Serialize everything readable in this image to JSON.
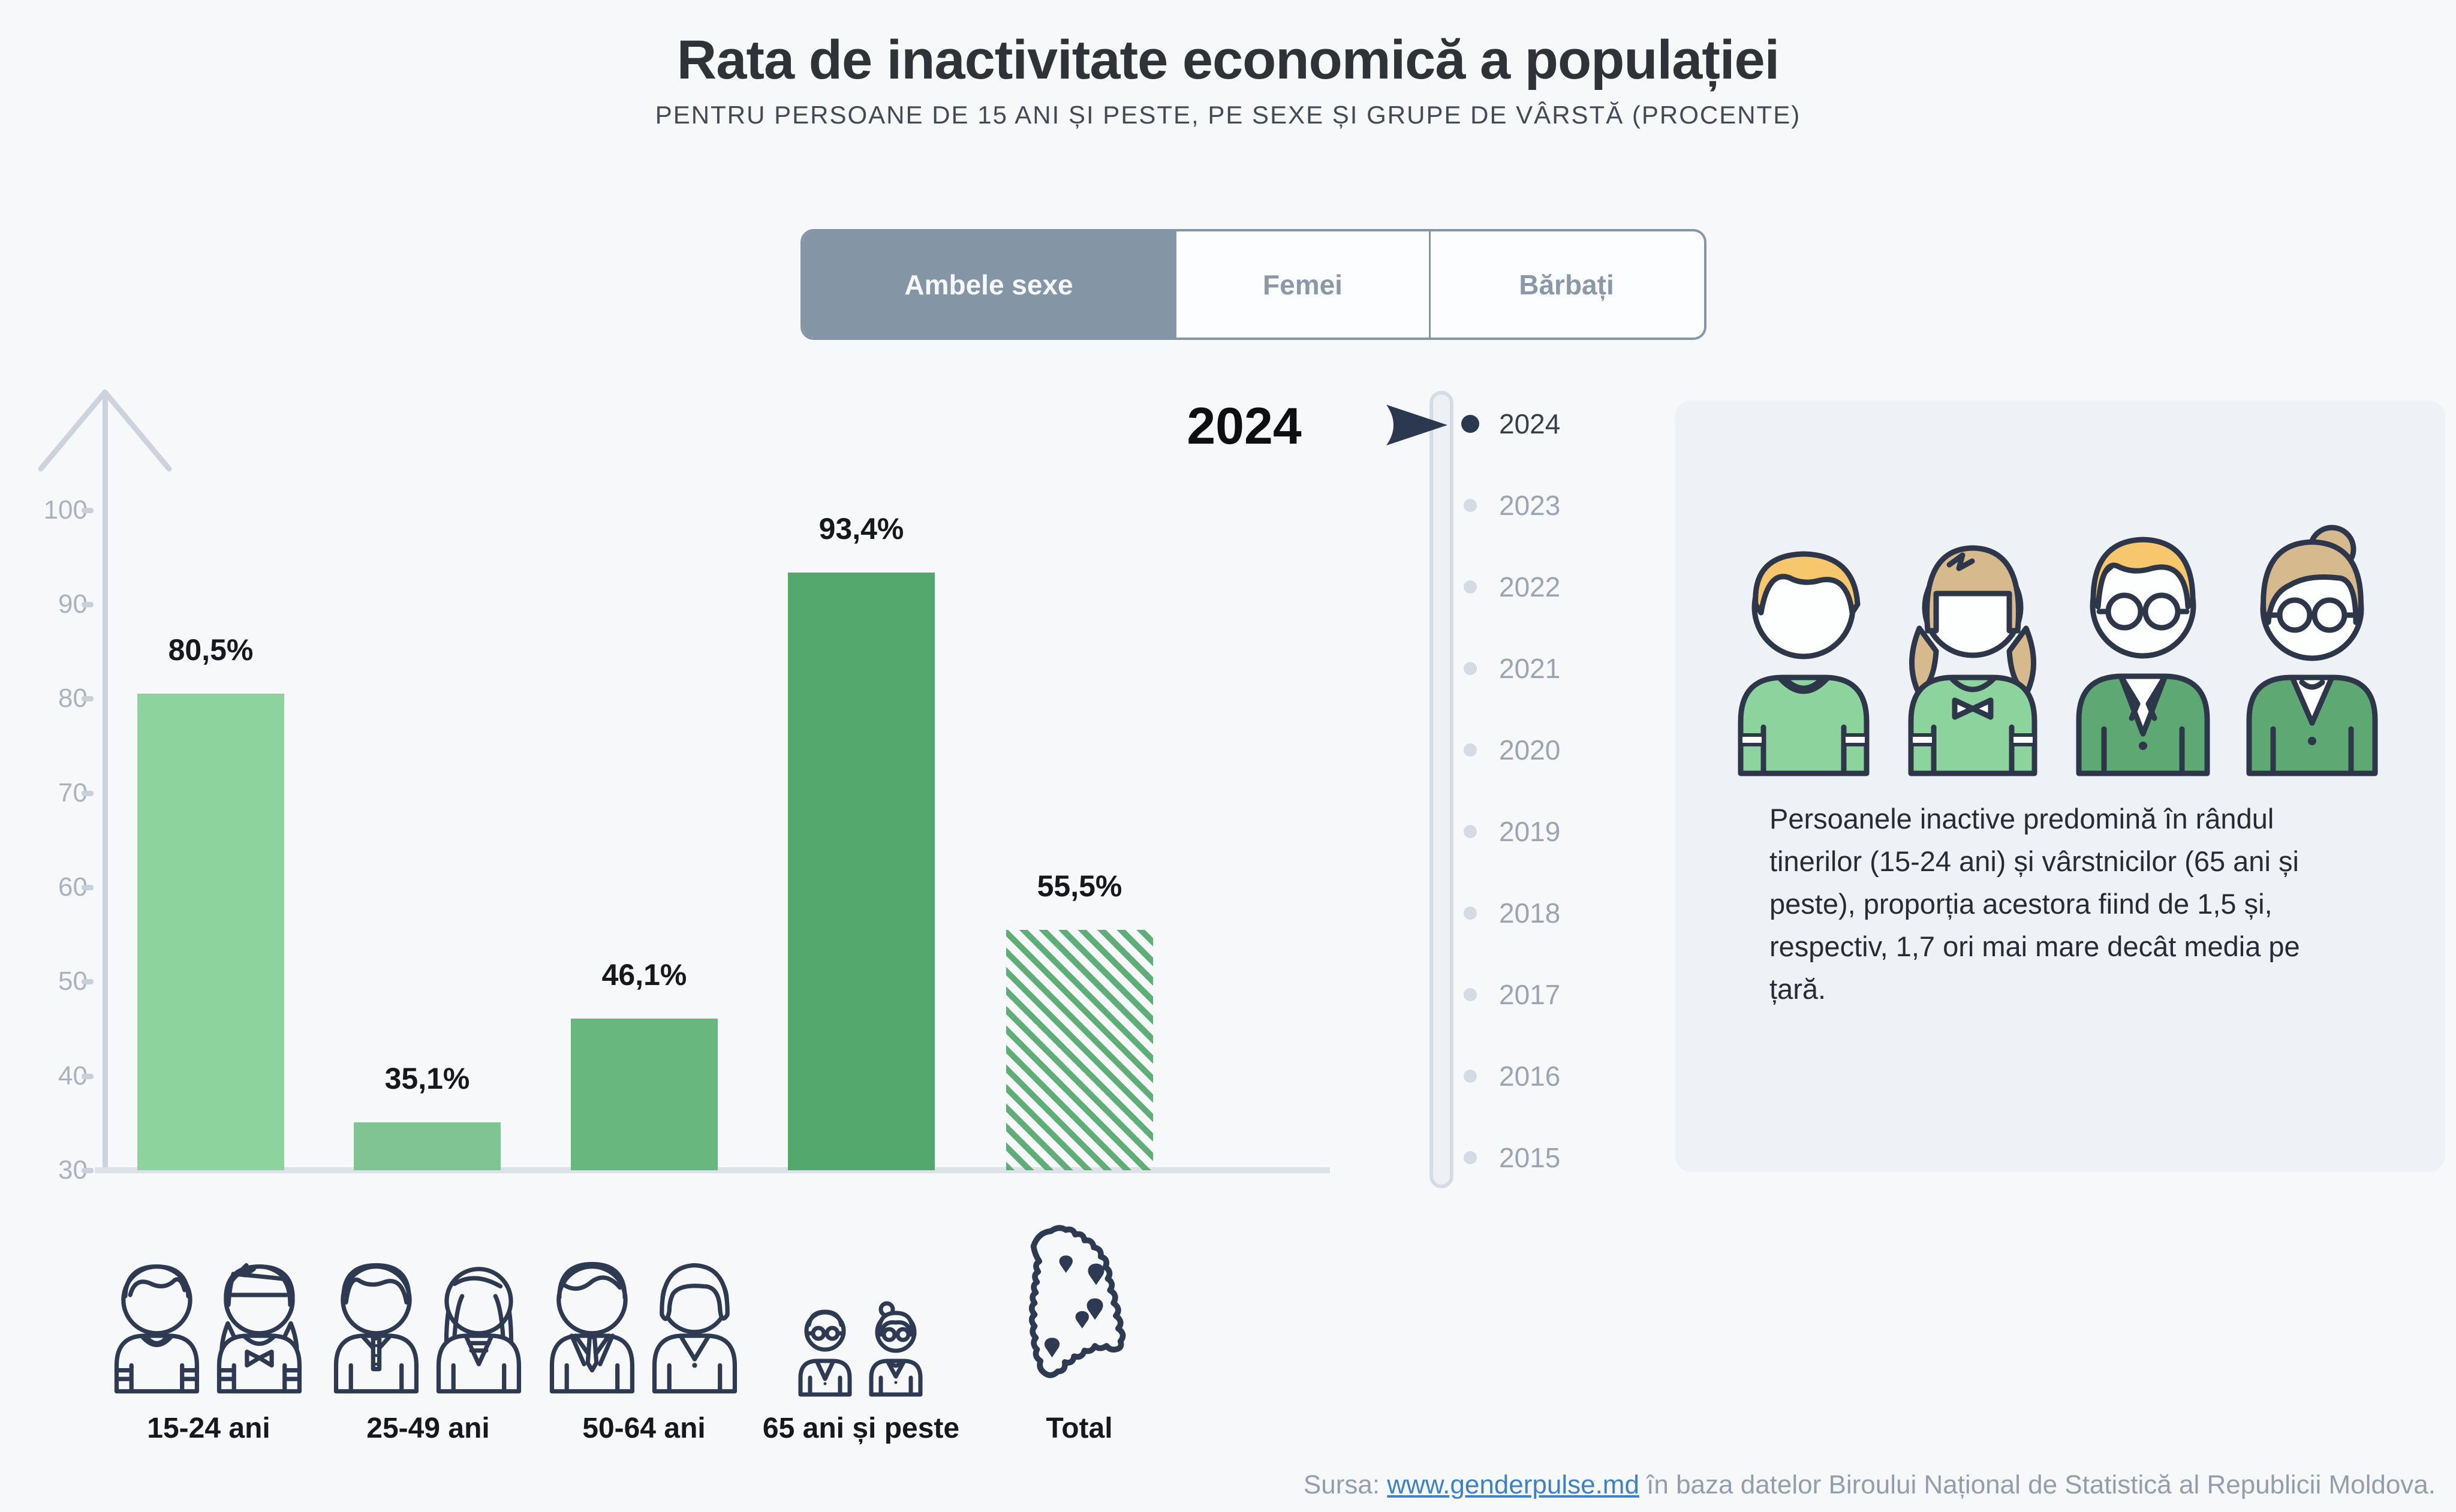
{
  "header": {
    "title": "Rata de inactivitate economică a populației",
    "subtitle": "PENTRU PERSOANE DE 15 ANI ȘI PESTE, PE SEXE ȘI GRUPE DE VÂRSTĂ (PROCENTE)"
  },
  "sex_tabs": {
    "items": [
      {
        "label": "Ambele sexe",
        "selected": true
      },
      {
        "label": "Femei",
        "selected": false
      },
      {
        "label": "Bărbați",
        "selected": false
      }
    ]
  },
  "chart_data": {
    "type": "bar",
    "title": "Rata de inactivitate economică a populației",
    "year": "2024",
    "categories": [
      "15-24 ani",
      "25-49 ani",
      "50-64 ani",
      "65 ani și peste",
      "Total"
    ],
    "values": [
      80.5,
      35.1,
      46.1,
      93.4,
      55.5
    ],
    "value_labels": [
      "80,5%",
      "35,1%",
      "46,1%",
      "93,4%",
      "55,5%"
    ],
    "ylim": [
      30,
      100
    ],
    "yticks": [
      30,
      40,
      50,
      60,
      70,
      80,
      90,
      100
    ],
    "bar_colors": [
      "#8dd39e",
      "#7fc492",
      "#68b77e",
      "#55a86d",
      "hatch"
    ],
    "hatch_color": "#5fae77",
    "grid": false,
    "legend_position": "none"
  },
  "year_slider": {
    "selected": "2024",
    "years": [
      "2024",
      "2023",
      "2022",
      "2021",
      "2020",
      "2019",
      "2018",
      "2017",
      "2016",
      "2015"
    ]
  },
  "info_card": {
    "text": "Persoanele inactive predomină în rândul tinerilor (15-24 ani) și vârstnicilor (65 ani și peste), proporția acestora fiind de 1,5 și, respectiv, 1,7 ori mai mare decât media pe țară."
  },
  "footer": {
    "prefix": "Sursa: ",
    "link": "www.genderpulse.md",
    "suffix": " în baza datelor Biroului Național de Statistică al Republicii Moldova."
  },
  "colors": {
    "page_bg": "#f7f8fa",
    "tab_accent": "#8496a6",
    "axis": "#ccd3dc",
    "tick_label": "#aab3bd",
    "marker": "#2c3850",
    "year_inactive": "#9aa5b1",
    "year_active": "#3a3f47",
    "card_bg": "#eef1f5",
    "icon_outline": "#2e3a52",
    "footer_text": "#939eac",
    "link": "#3e82c4"
  }
}
